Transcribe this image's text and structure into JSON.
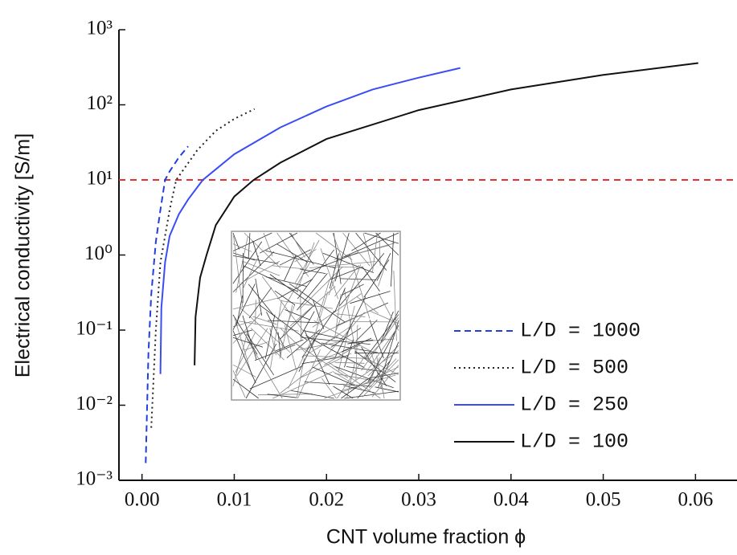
{
  "chart_data": {
    "type": "line",
    "x_label": "CNT volume fraction ϕ",
    "y_label": "Electrical conductivity [S/m]",
    "xlim": [
      -0.0025,
      0.0645
    ],
    "xticks": [
      {
        "value": 0,
        "label": "0.00"
      },
      0.01,
      0.02,
      0.03,
      0.04,
      0.05,
      0.06
    ],
    "ylim": [
      0.001,
      1000
    ],
    "log_y": true,
    "yticks": [
      {
        "value": 0.001,
        "label": "10⁻³"
      },
      {
        "value": 0.01,
        "label": "10⁻²"
      },
      {
        "value": 0.1,
        "label": "10⁻¹"
      },
      {
        "value": 1,
        "label": "10⁰"
      },
      {
        "value": 10,
        "label": "10¹"
      },
      {
        "value": 100,
        "label": "10²"
      },
      {
        "value": 1000,
        "label": "10³"
      }
    ],
    "hline": {
      "value": 10,
      "color": "#e53030"
    },
    "legend": "lower right",
    "series": [
      {
        "name": "L/D = 1000",
        "color": "#1f3fe0",
        "dash": "dashed",
        "x": [
          0.0004,
          0.0007,
          0.001,
          0.0015,
          0.002,
          0.0025,
          0.003,
          0.004,
          0.005
        ],
        "values": [
          0.0017,
          0.05,
          0.3,
          1.5,
          4,
          10,
          13,
          20,
          28
        ]
      },
      {
        "name": "L/D = 500",
        "color": "#222222",
        "dash": "dotted",
        "x": [
          0.001,
          0.0015,
          0.002,
          0.003,
          0.0037,
          0.006,
          0.008,
          0.01,
          0.0122
        ],
        "values": [
          0.005,
          0.1,
          0.8,
          4,
          10,
          25,
          45,
          65,
          88
        ]
      },
      {
        "name": "L/D = 250",
        "color": "#3a4cf5",
        "dash": "solid",
        "x": [
          0.002,
          0.0021,
          0.0025,
          0.003,
          0.004,
          0.005,
          0.0066,
          0.01,
          0.015,
          0.02,
          0.025,
          0.03,
          0.0345
        ],
        "values": [
          0.026,
          0.2,
          0.8,
          1.8,
          3.5,
          5.5,
          10,
          22,
          50,
          95,
          160,
          230,
          310
        ]
      },
      {
        "name": "L/D = 100",
        "color": "#111111",
        "dash": "solid",
        "x": [
          0.0057,
          0.0058,
          0.0063,
          0.007,
          0.008,
          0.01,
          0.0121,
          0.015,
          0.02,
          0.03,
          0.04,
          0.05,
          0.0603
        ],
        "values": [
          0.034,
          0.15,
          0.5,
          1.0,
          2.5,
          6,
          10,
          17,
          35,
          85,
          160,
          250,
          360
        ]
      }
    ]
  }
}
